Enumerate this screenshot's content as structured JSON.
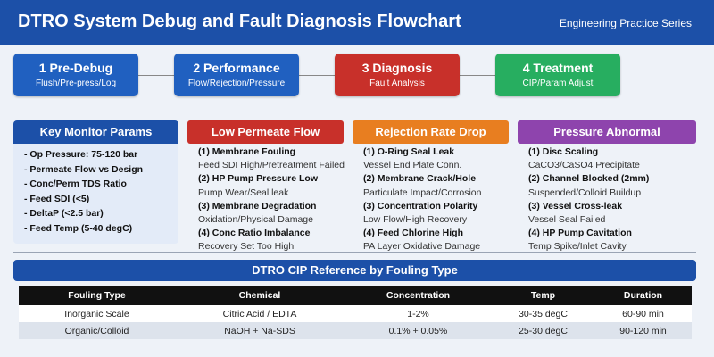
{
  "header": {
    "title": "DTRO System Debug and Fault Diagnosis Flowchart",
    "series": "Engineering Practice Series"
  },
  "colors": {
    "primary": "#1c50a8",
    "step_blue": "#2060c0",
    "diagnosis_red": "#c8302a",
    "treatment_green": "#27ae60",
    "rejection_orange": "#e87e20",
    "pressure_purple": "#8e44ad"
  },
  "steps": [
    {
      "title": "1 Pre-Debug",
      "subtitle": "Flush/Pre-press/Log"
    },
    {
      "title": "2 Performance",
      "subtitle": "Flow/Rejection/Pressure"
    },
    {
      "title": "3 Diagnosis",
      "subtitle": "Fault Analysis"
    },
    {
      "title": "4 Treatment",
      "subtitle": "CIP/Param Adjust"
    }
  ],
  "key_monitor": {
    "title": "Key Monitor Params",
    "items": [
      "- Op Pressure: 75-120 bar",
      "- Permeate Flow vs Design",
      "- Conc/Perm TDS Ratio",
      "- Feed SDI (<5)",
      "- DeltaP (<2.5 bar)",
      "- Feed Temp (5-40 degC)"
    ]
  },
  "faults": [
    {
      "title": "Low Permeate Flow",
      "items": [
        {
          "cause": "(1) Membrane Fouling",
          "detail": "Feed SDI High/Pretreatment Failed"
        },
        {
          "cause": "(2) HP Pump Pressure Low",
          "detail": "Pump Wear/Seal leak"
        },
        {
          "cause": "(3) Membrane Degradation",
          "detail": "Oxidation/Physical Damage"
        },
        {
          "cause": "(4) Conc Ratio Imbalance",
          "detail": "Recovery Set Too High"
        }
      ]
    },
    {
      "title": "Rejection Rate Drop",
      "items": [
        {
          "cause": "(1) O-Ring Seal Leak",
          "detail": "Vessel End Plate Conn."
        },
        {
          "cause": "(2) Membrane Crack/Hole",
          "detail": "Particulate Impact/Corrosion"
        },
        {
          "cause": "(3) Concentration Polarity",
          "detail": "Low Flow/High Recovery"
        },
        {
          "cause": "(4) Feed Chlorine High",
          "detail": "PA Layer Oxidative Damage"
        }
      ]
    },
    {
      "title": "Pressure Abnormal",
      "items": [
        {
          "cause": "(1) Disc Scaling",
          "detail": "CaCO3/CaSO4 Precipitate"
        },
        {
          "cause": "(2) Channel Blocked (2mm)",
          "detail": "Suspended/Colloid Buildup"
        },
        {
          "cause": "(3) Vessel Cross-leak",
          "detail": "Vessel Seal Failed"
        },
        {
          "cause": "(4) HP Pump Cavitation",
          "detail": "Temp Spike/Inlet Cavity"
        }
      ]
    }
  ],
  "cip": {
    "title": "DTRO CIP Reference by Fouling Type",
    "headers": [
      "Fouling Type",
      "Chemical",
      "Concentration",
      "Temp",
      "Duration"
    ],
    "rows": [
      [
        "Inorganic Scale",
        "Citric Acid / EDTA",
        "1-2%",
        "30-35 degC",
        "60-90 min"
      ],
      [
        "Organic/Colloid",
        "NaOH + Na-SDS",
        "0.1% + 0.05%",
        "25-30 degC",
        "90-120 min"
      ]
    ]
  }
}
